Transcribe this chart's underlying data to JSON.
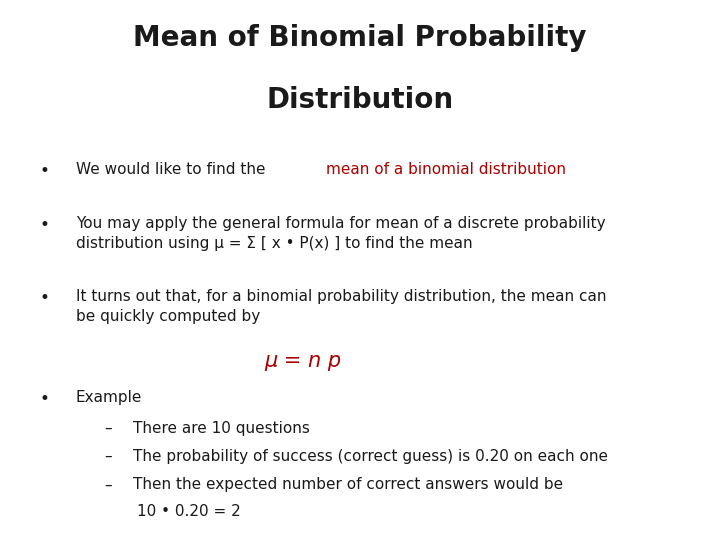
{
  "title_line1": "Mean of Binomial Probability",
  "title_line2": "Distribution",
  "background_color": "#ffffff",
  "title_color": "#1a1a1a",
  "title_fontsize": 20,
  "body_fontsize": 11,
  "body_color": "#1a1a1a",
  "red_color": "#aa0000",
  "formula_fontsize": 15,
  "bullet1_part1": "We would like to find the ",
  "bullet1_part2": "mean of a binomial distribution",
  "bullet2": "You may apply the general formula for mean of a discrete probability\ndistribution using μ = Σ [ x • P(x) ] to find the mean",
  "bullet3": "It turns out that, for a binomial probability distribution, the mean can\nbe quickly computed by",
  "formula": "μ = n p",
  "bullet4": "Example",
  "sub1": "There are 10 questions",
  "sub2": "The probability of success (correct guess) is 0.20 on each one",
  "sub3a": "Then the expected number of correct answers would be",
  "sub3b": "10 • 0.20 = 2",
  "lm": 0.055,
  "text_indent": 0.105,
  "sub_indent": 0.145,
  "sub_text_indent": 0.185
}
